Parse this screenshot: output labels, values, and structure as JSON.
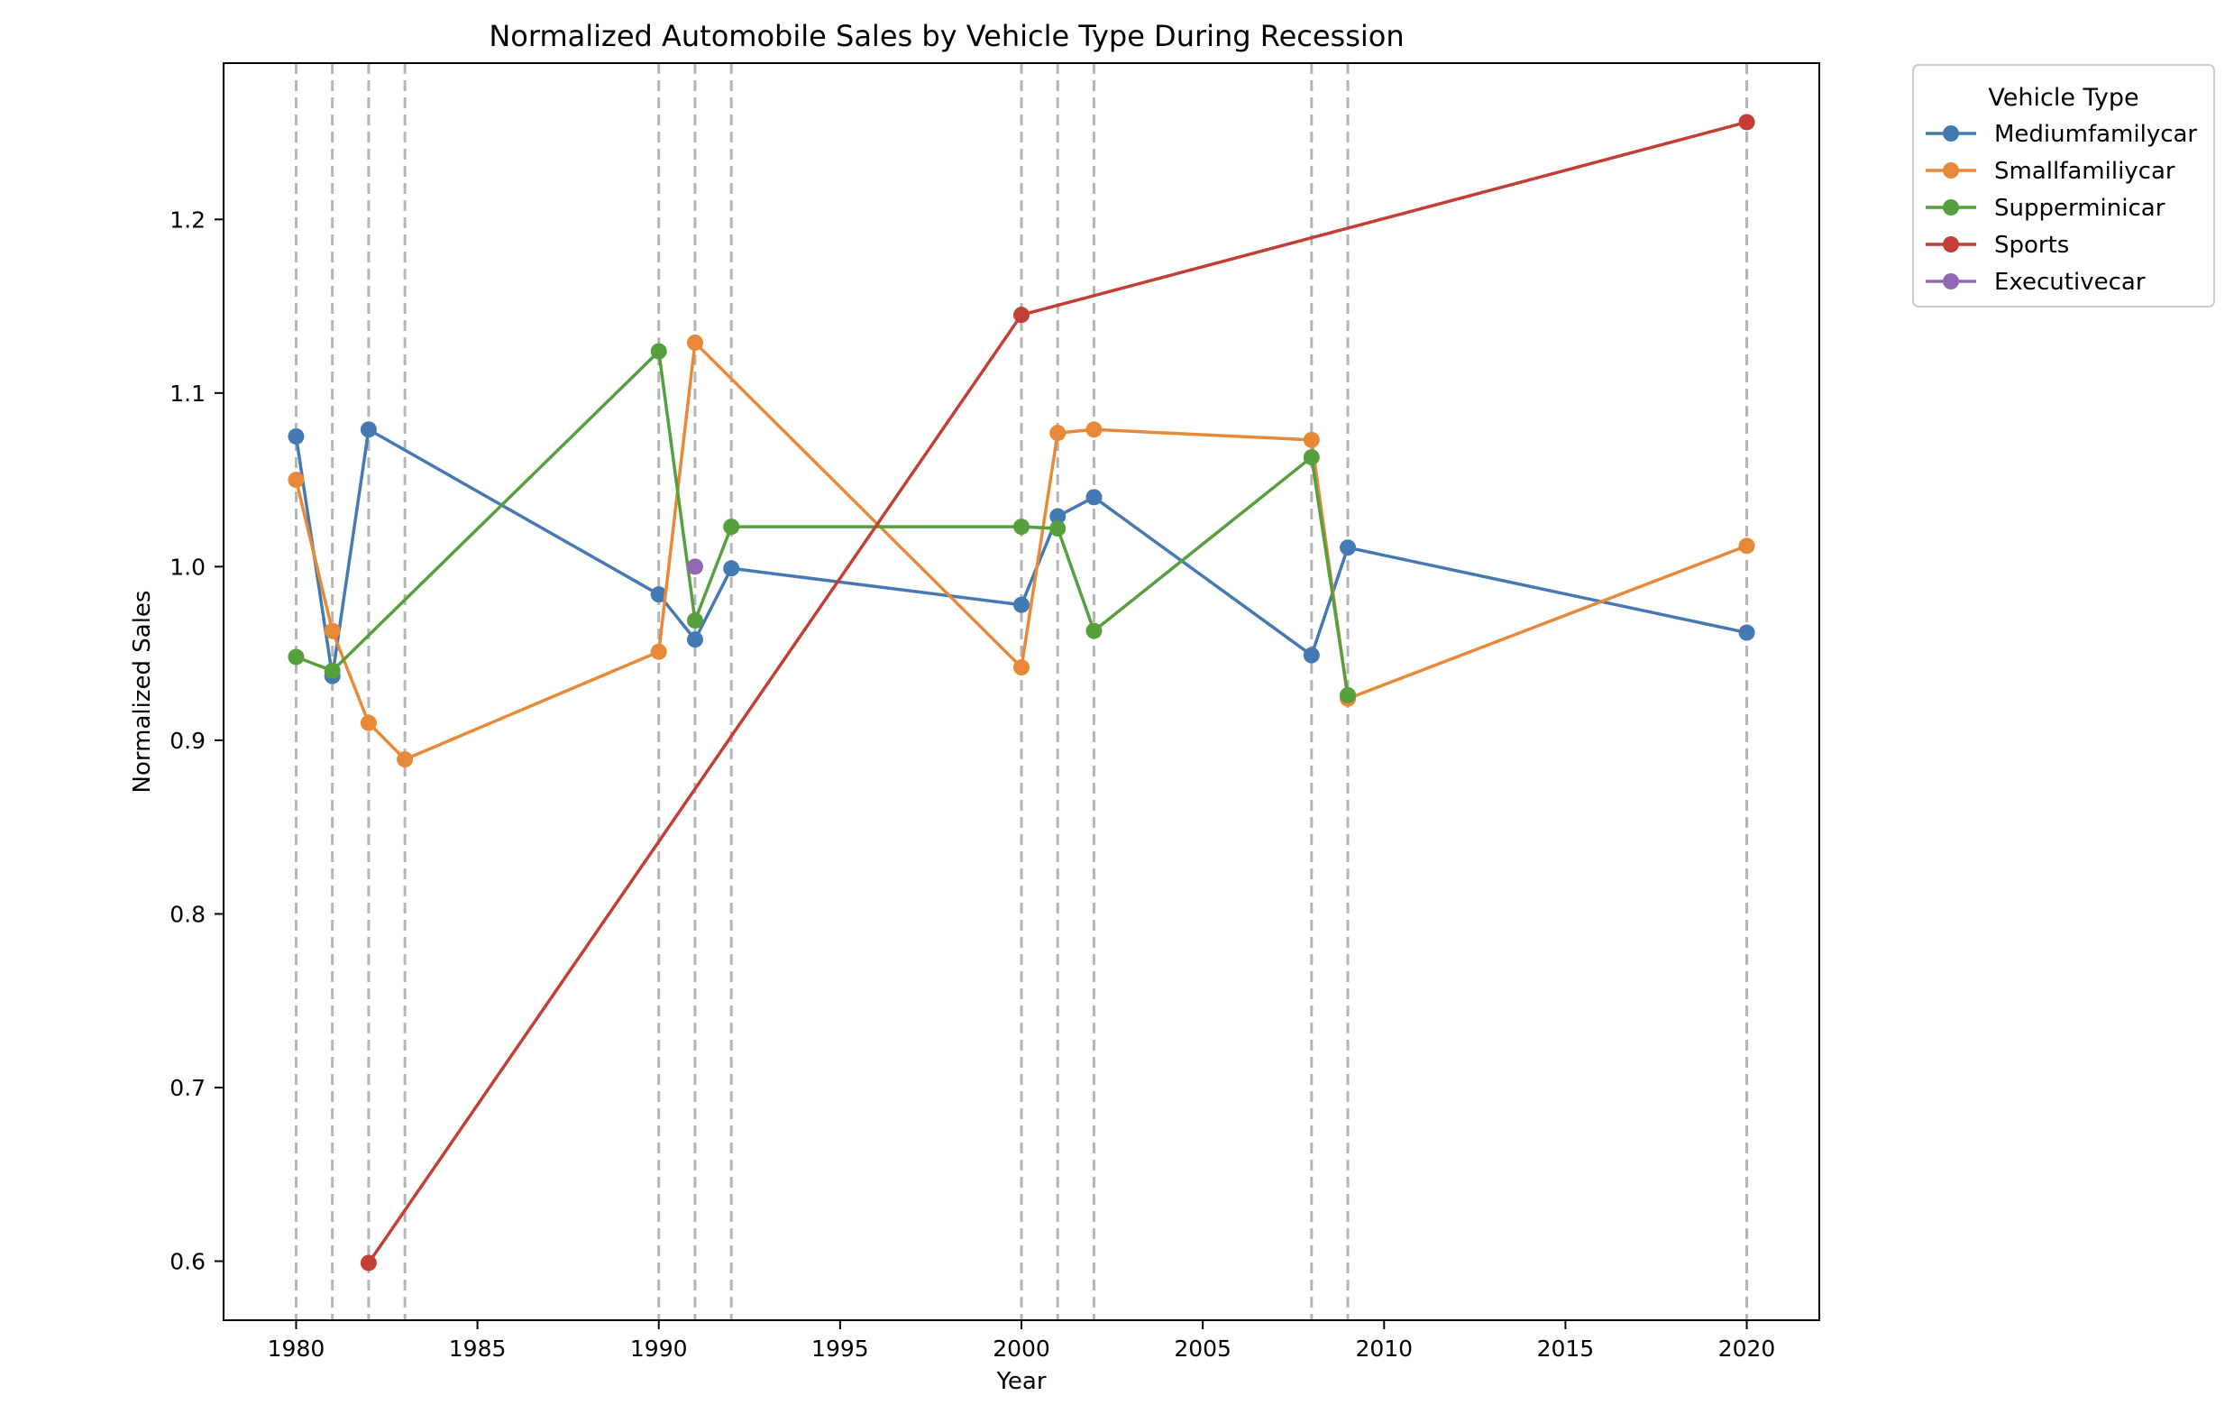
{
  "chart_data": {
    "type": "line",
    "title": "Normalized Automobile Sales by Vehicle Type During Recession",
    "xlabel": "Year",
    "ylabel": "Normalized Sales",
    "xlim": [
      1978,
      2022
    ],
    "ylim": [
      0.566,
      1.29
    ],
    "xticks": [
      1980,
      1985,
      1990,
      1995,
      2000,
      2005,
      2010,
      2015,
      2020
    ],
    "yticks": [
      0.6,
      0.7,
      0.8,
      0.9,
      1.0,
      1.1,
      1.2
    ],
    "ytick_labels": [
      "0.6",
      "0.7",
      "0.8",
      "0.9",
      "1.0",
      "1.1",
      "1.2"
    ],
    "recession_years": [
      1980,
      1981,
      1982,
      1983,
      1990,
      1991,
      1992,
      2000,
      2001,
      2002,
      2008,
      2009,
      2020
    ],
    "legend": {
      "title": "Vehicle Type",
      "placement": "outside-top-right"
    },
    "grid": false,
    "series": [
      {
        "name": "Mediumfamilycar",
        "color": "#4479b4",
        "x": [
          1980,
          1981,
          1982,
          1990,
          1991,
          1992,
          2000,
          2001,
          2002,
          2008,
          2009,
          2020
        ],
        "y": [
          1.075,
          0.937,
          1.079,
          0.984,
          0.958,
          0.999,
          0.978,
          1.029,
          1.04,
          0.949,
          1.011,
          0.962
        ]
      },
      {
        "name": "Smallfamiliycar",
        "color": "#e8893a",
        "x": [
          1980,
          1981,
          1982,
          1983,
          1990,
          1991,
          2000,
          2001,
          2002,
          2008,
          2009,
          2020
        ],
        "y": [
          1.05,
          0.963,
          0.91,
          0.889,
          0.951,
          1.129,
          0.942,
          1.077,
          1.079,
          1.073,
          0.924,
          1.012
        ]
      },
      {
        "name": "Supperminicar",
        "color": "#559f3d",
        "x": [
          1980,
          1981,
          1990,
          1991,
          1992,
          2000,
          2001,
          2002,
          2008,
          2009
        ],
        "y": [
          0.948,
          0.94,
          1.124,
          0.969,
          1.023,
          1.023,
          1.022,
          0.963,
          1.063,
          0.926
        ]
      },
      {
        "name": "Sports",
        "color": "#c33e35",
        "x": [
          1982,
          2000,
          2020
        ],
        "y": [
          0.599,
          1.145,
          1.256
        ]
      },
      {
        "name": "Executivecar",
        "color": "#9069b4",
        "x": [
          1991
        ],
        "y": [
          1.0
        ]
      }
    ]
  }
}
